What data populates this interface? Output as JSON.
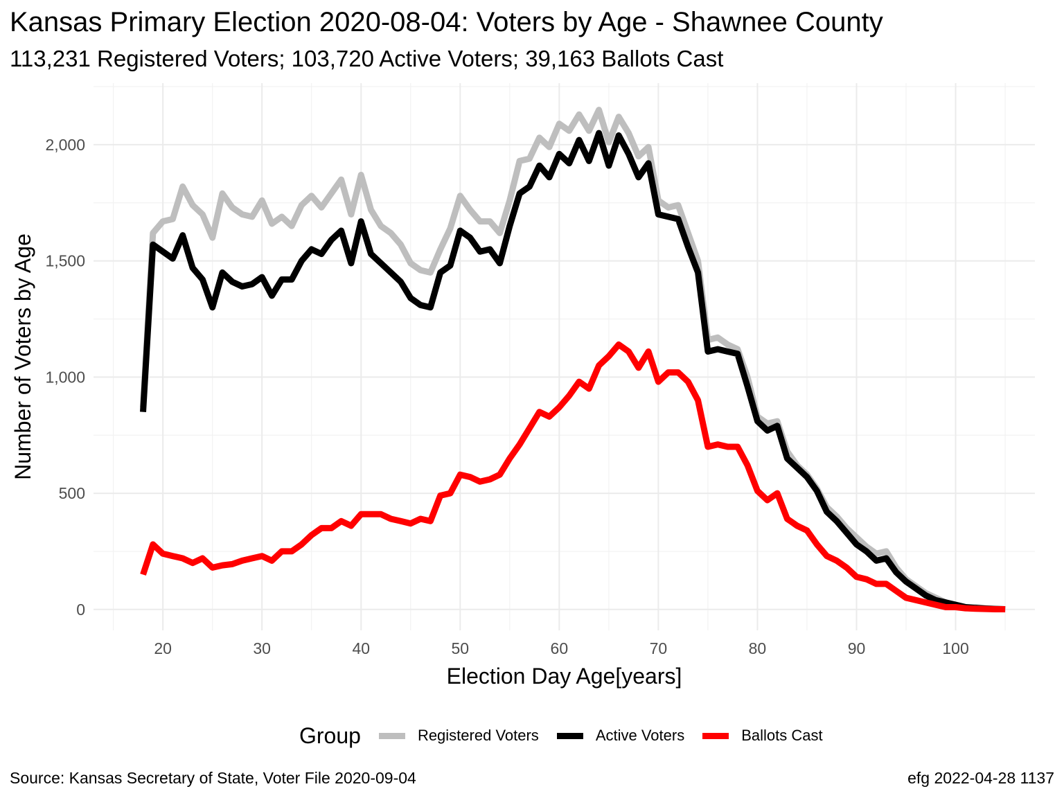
{
  "chart_data": {
    "type": "line",
    "title": "Kansas Primary Election 2020-08-04:  Voters by Age - Shawnee County",
    "subtitle": "113,231 Registered Voters; 103,720 Active Voters; 39,163 Ballots Cast",
    "xlabel": "Election Day Age[years]",
    "ylabel": "Number of Voters by Age",
    "xlim": [
      13,
      108
    ],
    "ylim": [
      -90,
      2265
    ],
    "x_ticks": [
      20,
      30,
      40,
      50,
      60,
      70,
      80,
      90,
      100
    ],
    "y_ticks": [
      0,
      500,
      1000,
      1500,
      2000
    ],
    "y_tick_labels": [
      "0",
      "500",
      "1,000",
      "1,500",
      "2,000"
    ],
    "grid": true,
    "legend": {
      "title": "Group",
      "position": "bottom"
    },
    "x": [
      18,
      19,
      20,
      21,
      22,
      23,
      24,
      25,
      26,
      27,
      28,
      29,
      30,
      31,
      32,
      33,
      34,
      35,
      36,
      37,
      38,
      39,
      40,
      41,
      42,
      43,
      44,
      45,
      46,
      47,
      48,
      49,
      50,
      51,
      52,
      53,
      54,
      55,
      56,
      57,
      58,
      59,
      60,
      61,
      62,
      63,
      64,
      65,
      66,
      67,
      68,
      69,
      70,
      71,
      72,
      73,
      74,
      75,
      76,
      77,
      78,
      79,
      80,
      81,
      82,
      83,
      84,
      85,
      86,
      87,
      88,
      89,
      90,
      91,
      92,
      93,
      94,
      95,
      96,
      97,
      98,
      99,
      100,
      101,
      102,
      103,
      104,
      105
    ],
    "series": [
      {
        "name": "Registered Voters",
        "color": "#bebebe",
        "values": [
          870,
          1620,
          1670,
          1680,
          1820,
          1740,
          1700,
          1600,
          1790,
          1730,
          1700,
          1690,
          1760,
          1660,
          1690,
          1650,
          1740,
          1780,
          1730,
          1790,
          1850,
          1700,
          1870,
          1720,
          1650,
          1620,
          1570,
          1490,
          1460,
          1450,
          1550,
          1640,
          1780,
          1720,
          1670,
          1670,
          1620,
          1760,
          1930,
          1940,
          2030,
          1990,
          2090,
          2060,
          2130,
          2060,
          2150,
          2010,
          2120,
          2050,
          1950,
          1990,
          1760,
          1730,
          1740,
          1620,
          1500,
          1160,
          1170,
          1140,
          1120,
          1000,
          830,
          800,
          810,
          680,
          620,
          580,
          520,
          440,
          400,
          350,
          310,
          270,
          240,
          250,
          180,
          130,
          100,
          70,
          50,
          30,
          20,
          10,
          10,
          5,
          2,
          1
        ]
      },
      {
        "name": "Active Voters",
        "color": "#000000",
        "values": [
          850,
          1570,
          1540,
          1510,
          1610,
          1470,
          1420,
          1300,
          1450,
          1410,
          1390,
          1400,
          1430,
          1350,
          1420,
          1420,
          1500,
          1550,
          1530,
          1590,
          1630,
          1490,
          1670,
          1530,
          1490,
          1450,
          1410,
          1340,
          1310,
          1300,
          1450,
          1480,
          1630,
          1600,
          1540,
          1550,
          1490,
          1650,
          1790,
          1820,
          1910,
          1860,
          1960,
          1920,
          2020,
          1930,
          2050,
          1910,
          2040,
          1960,
          1860,
          1920,
          1700,
          1690,
          1680,
          1560,
          1450,
          1110,
          1120,
          1110,
          1100,
          960,
          810,
          770,
          790,
          650,
          610,
          570,
          510,
          420,
          380,
          330,
          280,
          250,
          210,
          220,
          160,
          120,
          90,
          60,
          40,
          30,
          20,
          10,
          6,
          4,
          2,
          1
        ]
      },
      {
        "name": "Ballots Cast",
        "color": "#ff0000",
        "values": [
          150,
          280,
          240,
          230,
          220,
          200,
          220,
          180,
          190,
          195,
          210,
          220,
          230,
          210,
          250,
          250,
          280,
          320,
          350,
          350,
          380,
          360,
          410,
          410,
          410,
          390,
          380,
          370,
          390,
          380,
          490,
          500,
          580,
          570,
          550,
          560,
          580,
          650,
          710,
          780,
          850,
          830,
          870,
          920,
          980,
          950,
          1050,
          1090,
          1140,
          1110,
          1040,
          1110,
          980,
          1020,
          1020,
          980,
          900,
          700,
          710,
          700,
          700,
          620,
          510,
          470,
          500,
          390,
          360,
          340,
          280,
          230,
          210,
          180,
          140,
          130,
          110,
          110,
          80,
          50,
          40,
          30,
          20,
          10,
          10,
          5,
          3,
          2,
          1,
          1
        ]
      }
    ]
  },
  "legend_title": "Group",
  "footer": {
    "source": "Source:  Kansas Secretary of State, Voter File  2020-09-04",
    "stamp": "efg 2022-04-28 1137"
  }
}
